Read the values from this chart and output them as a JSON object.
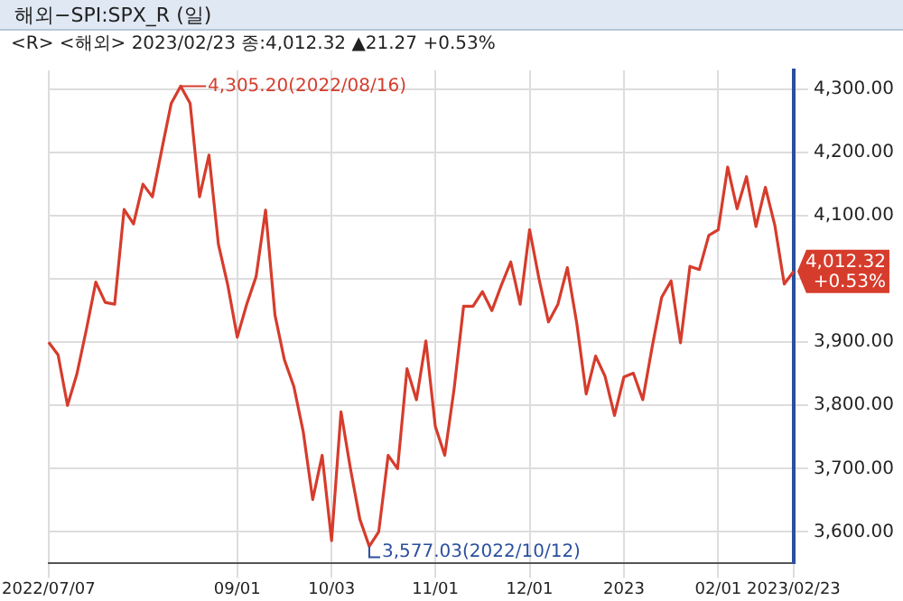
{
  "chart_data": {
    "type": "line",
    "title": "해외−SPI:SPX_R (일)",
    "subtitle": "<R> <해외> 2023/02/23 종:4,012.32 ▲21.27 +0.53%",
    "categories": [
      "2022/07/07",
      null,
      null,
      null,
      null,
      null,
      null,
      null,
      null,
      null,
      null,
      null,
      null,
      null,
      null,
      null,
      null,
      null,
      null,
      null,
      "09/01",
      null,
      null,
      null,
      null,
      null,
      null,
      null,
      null,
      null,
      "10/03",
      null,
      null,
      null,
      null,
      null,
      null,
      null,
      null,
      null,
      null,
      "11/01",
      null,
      null,
      null,
      null,
      null,
      null,
      null,
      null,
      null,
      "12/01",
      null,
      null,
      null,
      null,
      null,
      null,
      null,
      null,
      null,
      "2023",
      null,
      null,
      null,
      null,
      null,
      null,
      null,
      null,
      null,
      "02/01",
      null,
      null,
      null,
      null,
      null,
      null,
      null,
      "2023/02/23"
    ],
    "series": [
      {
        "color": "#d63c2c",
        "values": [
          3900,
          3880,
          3800,
          3850,
          3920,
          3995,
          3963,
          3960,
          4110,
          4087,
          4150,
          4130,
          4205,
          4278,
          4305,
          4278,
          4130,
          4196,
          4055,
          3990,
          3908,
          3960,
          4004,
          4109,
          3943,
          3872,
          3830,
          3758,
          3651,
          3721,
          3586,
          3790,
          3700,
          3620,
          3577,
          3600,
          3721,
          3700,
          3858,
          3809,
          3902,
          3767,
          3721,
          3827,
          3957,
          3957,
          3980,
          3950,
          3990,
          4027,
          3960,
          4078,
          4000,
          3932,
          3960,
          4018,
          3930,
          3818,
          3878,
          3846,
          3784,
          3845,
          3851,
          3809,
          3893,
          3971,
          3997,
          3899,
          4020,
          4015,
          4069,
          4078,
          4177,
          4111,
          4162,
          4083,
          4145,
          4085,
          3992,
          4012
        ]
      }
    ],
    "ylim": [
      3550,
      4330
    ],
    "yticks": [
      {
        "value": 3600,
        "label": "3,600.00"
      },
      {
        "value": 3700,
        "label": "3,700.00"
      },
      {
        "value": 3800,
        "label": "3,800.00"
      },
      {
        "value": 3900,
        "label": "3,900.00"
      },
      {
        "value": 4000,
        "label": null
      },
      {
        "value": 4100,
        "label": "4,100.00"
      },
      {
        "value": 4200,
        "label": "4,200.00"
      },
      {
        "value": 4300,
        "label": "4,300.00"
      }
    ],
    "annotations": [
      "4,305.20(2022/08/16)",
      "3,577.03(2022/10/12)",
      "4,012.32 +0.53%"
    ],
    "grid": true,
    "legend": false,
    "marker": "none",
    "line_style": "solid"
  }
}
